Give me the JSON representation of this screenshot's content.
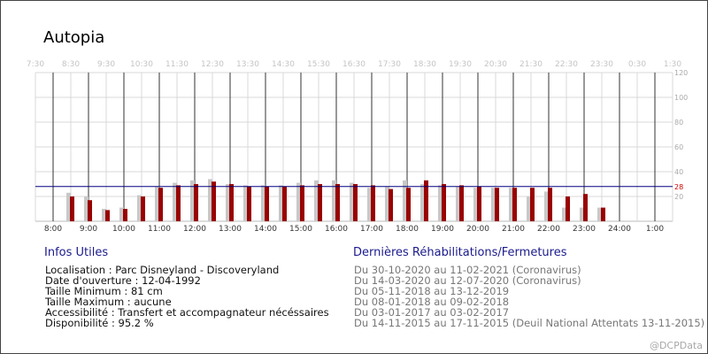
{
  "title": "Autopia",
  "chart_data": {
    "type": "bar",
    "top_labels": [
      "7:30",
      "8:30",
      "9:30",
      "10:30",
      "11:30",
      "12:30",
      "13:30",
      "14:30",
      "15:30",
      "16:30",
      "17:30",
      "18:30",
      "19:30",
      "20:30",
      "21:30",
      "22:30",
      "23:30",
      "0:30",
      "1:30"
    ],
    "bottom_labels": [
      "8:00",
      "9:00",
      "10:00",
      "11:00",
      "12:00",
      "13:00",
      "14:00",
      "15:00",
      "16:00",
      "17:00",
      "18:00",
      "19:00",
      "20:00",
      "21:00",
      "22:00",
      "23:00",
      "24:00",
      "1:00"
    ],
    "y_ticks": [
      20,
      40,
      60,
      80,
      100,
      120
    ],
    "ylim": [
      0,
      120
    ],
    "reference_line": {
      "value": 28,
      "label": "28",
      "color": "#000080"
    },
    "series": [
      {
        "color": "#c8c8c8",
        "values": [
          23,
          20,
          10,
          11,
          21,
          28,
          31,
          33,
          34,
          30,
          29,
          29,
          29,
          31,
          33,
          33,
          31,
          27,
          28,
          33,
          30,
          29,
          28,
          27,
          27,
          27,
          20,
          24,
          11,
          11,
          11
        ]
      },
      {
        "color": "#990000",
        "values": [
          20,
          17,
          9,
          10,
          20,
          27,
          29,
          30,
          32,
          30,
          28,
          28,
          28,
          29,
          30,
          30,
          30,
          29,
          26,
          27,
          33,
          30,
          29,
          28,
          27,
          27,
          27,
          27,
          20,
          22,
          11
        ]
      }
    ],
    "colors": {
      "bar_primary": "#990000",
      "bar_secondary": "#c8c8c8",
      "grid": "#d9d9d9",
      "tick_label": "#555555"
    }
  },
  "info": {
    "heading": "Infos Utiles",
    "lines": [
      "Localisation : Parc Disneyland - Discoveryland",
      "Date d'ouverture : 12-04-1992",
      "Taille Minimum : 81 cm",
      "Taille Maximum : aucune",
      "Accessibilité : Transfert et accompagnateur nécéssaires",
      "Disponibilité : 95.2 %"
    ]
  },
  "rehab": {
    "heading": "Dernières Réhabilitations/Fermetures",
    "lines": [
      "Du 30-10-2020 au 11-02-2021 (Coronavirus)",
      "Du 14-03-2020 au 12-07-2020 (Coronavirus)",
      "Du 05-11-2018 au 13-12-2019",
      "Du 08-01-2018 au 09-02-2018",
      "Du 03-01-2017 au 03-02-2017",
      "Du 14-11-2015 au 17-11-2015 (Deuil National Attentats 13-11-2015)"
    ]
  },
  "watermark": "@DCPData"
}
